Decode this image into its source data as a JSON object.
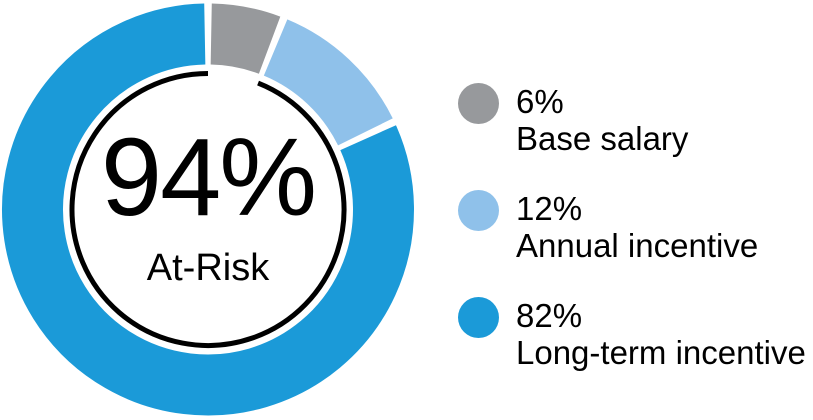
{
  "chart_data": {
    "type": "pie",
    "subtype": "donut",
    "title": "",
    "center_value": "94%",
    "center_label": "At-Risk",
    "categories": [
      "Base salary",
      "Annual incentive",
      "Long-term incentive"
    ],
    "values": [
      6,
      12,
      82
    ],
    "segments": [
      {
        "label": "Base salary",
        "pct_label": "6%",
        "value": 6,
        "color": "#97999c"
      },
      {
        "label": "Annual incentive",
        "pct_label": "12%",
        "value": 12,
        "color": "#8fc1ea"
      },
      {
        "label": "Long-term incentive",
        "pct_label": "82%",
        "value": 82,
        "color": "#1b9ad8"
      }
    ],
    "inner_arc": {
      "covers_pct": 94,
      "gap_over_segment": "Base salary",
      "color": "#000000"
    },
    "start_angle_deg": 0,
    "direction": "clockwise",
    "legend_position": "right"
  }
}
